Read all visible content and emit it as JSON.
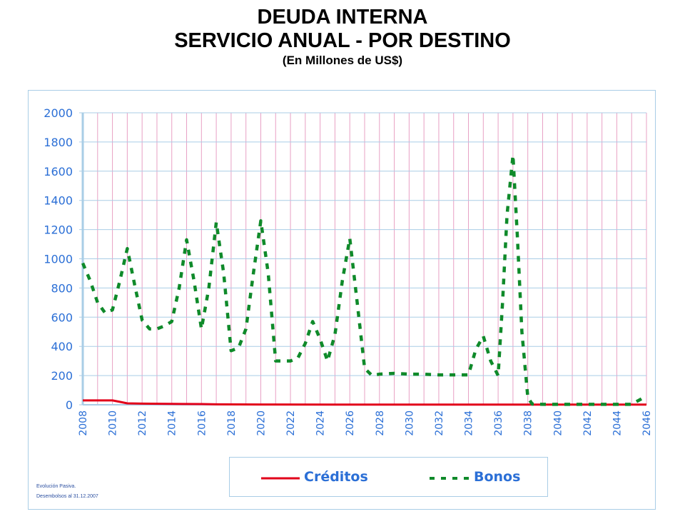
{
  "title": {
    "line1": "DEUDA INTERNA",
    "line2": "SERVICIO ANUAL - POR DESTINO",
    "subtitle": "(En Millones de US$)"
  },
  "footnote": {
    "line1": "Evolución Pasiva.",
    "line2": "Desembolsos al 31.12.2007"
  },
  "colors": {
    "creditos": "#e2001a",
    "bonos": "#0f8a2a",
    "axis_text": "#2b6fd6",
    "grid_h": "#a9cde6",
    "grid_v": "#e8a0c4"
  },
  "chart_data": {
    "type": "line",
    "title": "DEUDA INTERNA SERVICIO ANUAL - POR DESTINO",
    "subtitle": "(En Millones de US$)",
    "xlabel": "",
    "ylabel": "",
    "xlim": [
      2008,
      2046
    ],
    "ylim": [
      0,
      2000
    ],
    "yticks": [
      "0",
      "200",
      "400",
      "600",
      "800",
      "1000",
      "1200",
      "1400",
      "1600",
      "1800",
      "2000"
    ],
    "xticks": [
      "2008",
      "2010",
      "2012",
      "2014",
      "2016",
      "2018",
      "2020",
      "2022",
      "2024",
      "2026",
      "2028",
      "2030",
      "2032",
      "2034",
      "2036",
      "2038",
      "2040",
      "2042",
      "2044",
      "2046"
    ],
    "grid": true,
    "legend": "bottom",
    "series": [
      {
        "name": "Créditos",
        "style": "solid",
        "x": [
          2008,
          2009,
          2010,
          2010.5,
          2011,
          2012,
          2014,
          2016,
          2017,
          2020,
          2025,
          2030,
          2035,
          2040,
          2046
        ],
        "values": [
          30,
          30,
          30,
          20,
          10,
          8,
          6,
          5,
          3,
          2,
          1,
          1,
          1,
          1,
          1
        ]
      },
      {
        "name": "Bonos",
        "style": "dashed",
        "x": [
          2008,
          2008.5,
          2009,
          2009.5,
          2010,
          2010.5,
          2011,
          2011.5,
          2012,
          2012.5,
          2013,
          2013.5,
          2014,
          2014.5,
          2015,
          2015.5,
          2016,
          2016.5,
          2017,
          2017.5,
          2018,
          2018.5,
          2019,
          2019.5,
          2020,
          2020.5,
          2021,
          2021.5,
          2022,
          2022.5,
          2023,
          2023.5,
          2024,
          2024.5,
          2025,
          2025.5,
          2026,
          2026.5,
          2027,
          2027.5,
          2028,
          2029,
          2030,
          2031,
          2032,
          2033,
          2034,
          2034.5,
          2035,
          2035.5,
          2036,
          2036.3,
          2036.6,
          2037,
          2037.3,
          2037.6,
          2038,
          2038.3,
          2039,
          2040,
          2041,
          2042,
          2043,
          2044,
          2045,
          2046
        ],
        "values": [
          970,
          850,
          700,
          630,
          650,
          850,
          1070,
          820,
          580,
          520,
          520,
          540,
          570,
          800,
          1130,
          850,
          520,
          800,
          1250,
          900,
          370,
          390,
          520,
          900,
          1260,
          900,
          300,
          300,
          300,
          320,
          420,
          570,
          450,
          300,
          480,
          850,
          1140,
          700,
          250,
          200,
          210,
          215,
          210,
          210,
          205,
          205,
          205,
          380,
          470,
          300,
          200,
          700,
          1300,
          1710,
          1150,
          500,
          50,
          5,
          3,
          3,
          3,
          3,
          3,
          3,
          3,
          60
        ]
      }
    ]
  }
}
